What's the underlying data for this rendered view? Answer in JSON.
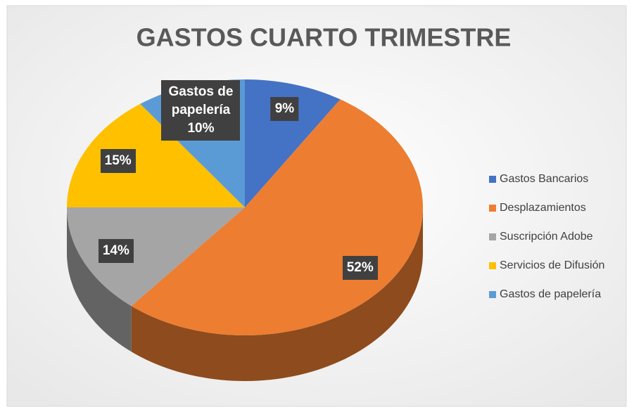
{
  "chart_data": {
    "type": "pie3d",
    "title": "GASTOS CUARTO TRIMESTRE",
    "categories": [
      "Gastos Bancarios",
      "Desplazamientos",
      "Suscripción Adobe",
      "Servicios de Difusión",
      "Gastos de papelería"
    ],
    "values": [
      9,
      52,
      14,
      15,
      10
    ],
    "value_labels": [
      "9%",
      "52%",
      "14%",
      "15%",
      "10%"
    ],
    "label_with_name": [
      false,
      false,
      false,
      false,
      true
    ],
    "colors": [
      "#4472c4",
      "#ed7d31",
      "#a5a5a5",
      "#ffc000",
      "#5b9bd5"
    ],
    "legend": "right"
  }
}
